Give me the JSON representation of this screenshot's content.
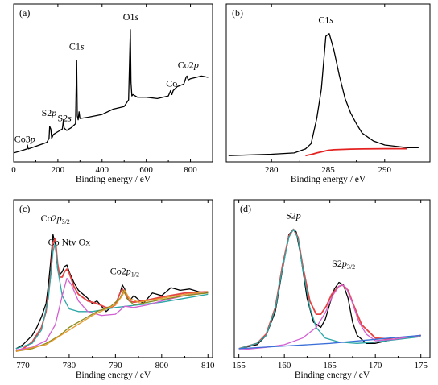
{
  "figure": {
    "panels": [
      "(a)",
      "(b)",
      "(c)",
      "(d)"
    ]
  },
  "chart_data": [
    {
      "panel_label": "(a)",
      "type": "line",
      "xlabel": "Binding energy / eV",
      "ylabel": "",
      "xlim": [
        0,
        900
      ],
      "ylim": [
        0,
        1
      ],
      "xticks": [
        0,
        200,
        400,
        600,
        800
      ],
      "grid": false,
      "legend": null,
      "series": [
        {
          "color": "#000000",
          "x": [
            0,
            40,
            60,
            62,
            66,
            100,
            150,
            160,
            163,
            168,
            172,
            180,
            200,
            220,
            225,
            228,
            233,
            240,
            260,
            280,
            285,
            288,
            292,
            296,
            300,
            340,
            400,
            450,
            500,
            520,
            528,
            531,
            535,
            540,
            560,
            600,
            650,
            700,
            710,
            716,
            722,
            740,
            770,
            780,
            784,
            790,
            800,
            850,
            880
          ],
          "y": [
            0.02,
            0.04,
            0.05,
            0.08,
            0.05,
            0.07,
            0.1,
            0.13,
            0.22,
            0.2,
            0.13,
            0.16,
            0.18,
            0.2,
            0.27,
            0.21,
            0.2,
            0.19,
            0.21,
            0.24,
            0.72,
            0.3,
            0.27,
            0.33,
            0.28,
            0.29,
            0.31,
            0.35,
            0.37,
            0.42,
            0.95,
            0.55,
            0.45,
            0.46,
            0.44,
            0.44,
            0.43,
            0.45,
            0.49,
            0.46,
            0.49,
            0.52,
            0.54,
            0.59,
            0.6,
            0.57,
            0.58,
            0.6,
            0.59
          ]
        }
      ],
      "annotations": [
        {
          "text": "Co3p",
          "x": 50,
          "y": 0.1
        },
        {
          "text": "S2p",
          "x": 160,
          "y": 0.3
        },
        {
          "text": "S2s",
          "x": 230,
          "y": 0.26
        },
        {
          "text": "C1s",
          "x": 285,
          "y": 0.8
        },
        {
          "text": "O1s",
          "x": 530,
          "y": 1.02
        },
        {
          "text": "Co",
          "x": 715,
          "y": 0.52
        },
        {
          "text": "Co2p",
          "x": 790,
          "y": 0.66
        }
      ]
    },
    {
      "panel_label": "(b)",
      "type": "line",
      "xlabel": "Binding energy / eV",
      "ylabel": "",
      "xlim": [
        276,
        294
      ],
      "ylim": [
        0,
        1
      ],
      "xticks": [
        280,
        285,
        290
      ],
      "grid": false,
      "legend": null,
      "series": [
        {
          "color": "#000000",
          "x": [
            276.2,
            280,
            282,
            283,
            283.5,
            284,
            284.4,
            284.8,
            285.1,
            285.5,
            286,
            286.5,
            287,
            287.5,
            288,
            289,
            290,
            291,
            292,
            293
          ],
          "y": [
            0.0,
            0.01,
            0.02,
            0.05,
            0.09,
            0.28,
            0.5,
            0.9,
            0.92,
            0.8,
            0.6,
            0.43,
            0.32,
            0.24,
            0.17,
            0.11,
            0.08,
            0.07,
            0.06,
            0.06
          ]
        },
        {
          "color": "#e52222",
          "x": [
            283,
            283.6,
            284,
            284.5,
            285,
            285.5,
            286,
            287,
            288,
            290,
            292
          ],
          "y": [
            0.0,
            0.01,
            0.02,
            0.03,
            0.04,
            0.044,
            0.046,
            0.049,
            0.05,
            0.052,
            0.052
          ]
        }
      ],
      "annotations": [
        {
          "text": "C1s",
          "x": 284.8,
          "y": 1.0
        }
      ]
    },
    {
      "panel_label": "(c)",
      "type": "line",
      "xlabel": "Binding energy / eV",
      "ylabel": "",
      "xlim": [
        768,
        811
      ],
      "ylim": [
        0,
        1
      ],
      "xticks": [
        770,
        780,
        790,
        800,
        810
      ],
      "grid": false,
      "legend": null,
      "series": [
        {
          "color": "#000000",
          "x": [
            768.5,
            770,
            772,
            773,
            774,
            775,
            775.5,
            776,
            776.5,
            777,
            777.5,
            778,
            778.5,
            779,
            779.5,
            780,
            781,
            782,
            783,
            784,
            785,
            786,
            787,
            788,
            789,
            790,
            791,
            791.5,
            792,
            792.5,
            793,
            794,
            796,
            798,
            800,
            802,
            804,
            806,
            808,
            810
          ],
          "y": [
            0.02,
            0.05,
            0.12,
            0.18,
            0.26,
            0.36,
            0.5,
            0.68,
            0.88,
            0.8,
            0.62,
            0.58,
            0.6,
            0.64,
            0.65,
            0.6,
            0.52,
            0.46,
            0.43,
            0.4,
            0.36,
            0.38,
            0.34,
            0.3,
            0.33,
            0.35,
            0.44,
            0.5,
            0.47,
            0.4,
            0.38,
            0.42,
            0.36,
            0.44,
            0.42,
            0.48,
            0.46,
            0.47,
            0.45,
            0.44
          ]
        },
        {
          "color": "#e54444",
          "x": [
            768.5,
            770,
            772,
            774,
            775,
            776,
            776.5,
            777,
            777.5,
            778,
            778.5,
            779,
            779.5,
            780,
            781,
            782,
            784,
            786,
            788,
            789,
            790,
            791,
            791.5,
            792,
            793,
            794,
            796,
            800,
            805,
            810
          ],
          "y": [
            0.0,
            0.02,
            0.07,
            0.18,
            0.3,
            0.58,
            0.82,
            0.85,
            0.66,
            0.56,
            0.56,
            0.6,
            0.62,
            0.59,
            0.49,
            0.43,
            0.38,
            0.36,
            0.33,
            0.33,
            0.35,
            0.44,
            0.47,
            0.44,
            0.38,
            0.37,
            0.38,
            0.41,
            0.44,
            0.45
          ]
        },
        {
          "color": "#2aa6a6",
          "x": [
            768.5,
            772,
            774,
            775.5,
            776.5,
            777,
            777.5,
            778.5,
            780,
            782,
            785,
            790,
            795,
            800,
            805,
            810
          ],
          "y": [
            0.02,
            0.06,
            0.16,
            0.4,
            0.75,
            0.82,
            0.62,
            0.42,
            0.32,
            0.3,
            0.3,
            0.33,
            0.35,
            0.37,
            0.4,
            0.43
          ]
        },
        {
          "color": "#d35fd3",
          "x": [
            768.5,
            772,
            775,
            777,
            778.5,
            779.5,
            780.5,
            782,
            784,
            787,
            790,
            792,
            794,
            797,
            800,
            805,
            810
          ],
          "y": [
            0.01,
            0.03,
            0.08,
            0.2,
            0.42,
            0.55,
            0.5,
            0.38,
            0.3,
            0.27,
            0.28,
            0.34,
            0.33,
            0.35,
            0.38,
            0.42,
            0.45
          ]
        },
        {
          "color": "#8b8b1e",
          "x": [
            768.5,
            772,
            775,
            778,
            780,
            783,
            786,
            789,
            791,
            791.8,
            792.5,
            794,
            797,
            800,
            805,
            810
          ],
          "y": [
            0.0,
            0.02,
            0.06,
            0.12,
            0.18,
            0.24,
            0.3,
            0.34,
            0.4,
            0.46,
            0.4,
            0.35,
            0.37,
            0.39,
            0.42,
            0.44
          ]
        },
        {
          "color": "#e69a2e",
          "x": [
            768.5,
            775,
            780,
            785,
            788,
            790,
            791.5,
            792,
            793,
            795,
            800,
            805,
            810
          ],
          "y": [
            0.0,
            0.05,
            0.16,
            0.27,
            0.32,
            0.35,
            0.42,
            0.46,
            0.4,
            0.37,
            0.4,
            0.43,
            0.45
          ]
        }
      ],
      "annotations": [
        {
          "text": "Co2p3/2",
          "x": 777,
          "y": 0.98
        },
        {
          "text": "Co Ntv Ox",
          "x": 780,
          "y": 0.8
        },
        {
          "text": "Co2p1/2",
          "x": 792,
          "y": 0.58
        }
      ]
    },
    {
      "panel_label": "(d)",
      "type": "line",
      "xlabel": "Binding energy / eV",
      "ylabel": "",
      "xlim": [
        154.5,
        176
      ],
      "ylim": [
        0,
        1
      ],
      "xticks": [
        155,
        160,
        165,
        170,
        175
      ],
      "grid": false,
      "legend": null,
      "series": [
        {
          "color": "#000000",
          "x": [
            155,
            157,
            158,
            159,
            159.8,
            160.5,
            161,
            161.3,
            161.8,
            162.5,
            163.2,
            164,
            164.5,
            165,
            165.5,
            166,
            166.5,
            167,
            167.5,
            168,
            169,
            170,
            172,
            175
          ],
          "y": [
            0.02,
            0.05,
            0.12,
            0.3,
            0.62,
            0.88,
            0.92,
            0.9,
            0.72,
            0.4,
            0.22,
            0.18,
            0.24,
            0.36,
            0.47,
            0.52,
            0.5,
            0.4,
            0.22,
            0.12,
            0.06,
            0.06,
            0.09,
            0.12
          ]
        },
        {
          "color": "#e54444",
          "x": [
            155,
            157,
            158,
            159,
            159.8,
            160.5,
            161,
            161.5,
            162,
            162.8,
            163.5,
            164,
            164.6,
            165.2,
            166,
            166.4,
            167,
            167.6,
            168.5,
            170,
            172,
            175
          ],
          "y": [
            0.02,
            0.06,
            0.13,
            0.33,
            0.65,
            0.87,
            0.92,
            0.86,
            0.65,
            0.38,
            0.28,
            0.28,
            0.34,
            0.43,
            0.49,
            0.5,
            0.46,
            0.35,
            0.2,
            0.1,
            0.09,
            0.12
          ]
        },
        {
          "color": "#2aa6a6",
          "x": [
            155,
            157,
            158,
            159,
            159.8,
            160.5,
            161,
            161.5,
            162,
            162.8,
            163.5,
            164.5,
            166,
            168,
            170,
            172.5,
            175
          ],
          "y": [
            0.02,
            0.06,
            0.12,
            0.32,
            0.63,
            0.86,
            0.92,
            0.85,
            0.63,
            0.33,
            0.18,
            0.1,
            0.07,
            0.06,
            0.07,
            0.09,
            0.11
          ]
        },
        {
          "color": "#d35fd3",
          "x": [
            155,
            158,
            160,
            162,
            163.5,
            164.5,
            165.3,
            166,
            166.4,
            166.8,
            167.4,
            168.2,
            169,
            170,
            172,
            175
          ],
          "y": [
            0.01,
            0.03,
            0.05,
            0.1,
            0.18,
            0.29,
            0.42,
            0.49,
            0.5,
            0.48,
            0.38,
            0.22,
            0.13,
            0.08,
            0.09,
            0.12
          ]
        },
        {
          "color": "#3a6fd8",
          "x": [
            155,
            160,
            165,
            170,
            175
          ],
          "y": [
            0.02,
            0.04,
            0.06,
            0.09,
            0.12
          ]
        }
      ],
      "annotations": [
        {
          "text": "S2p",
          "x": 161,
          "y": 1.0
        },
        {
          "text": "S2p3/2",
          "x": 166.5,
          "y": 0.64
        }
      ]
    }
  ]
}
